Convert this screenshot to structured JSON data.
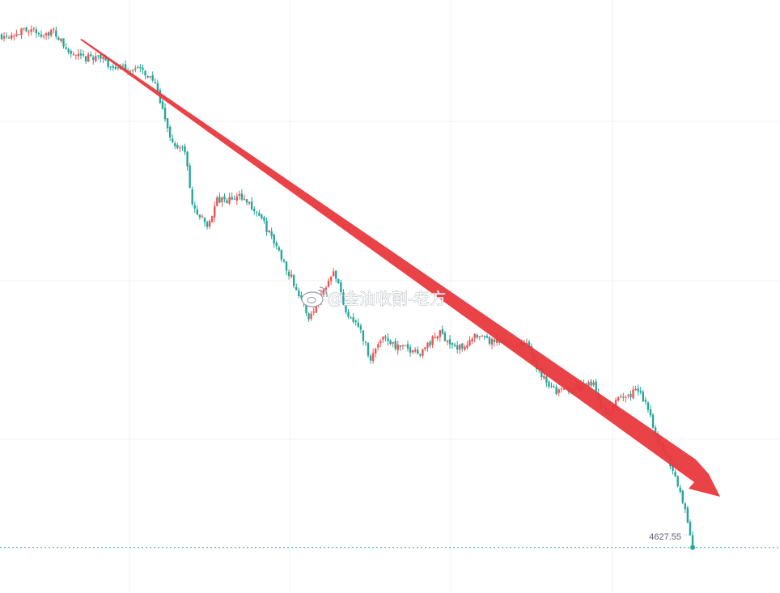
{
  "chart_data": {
    "type": "candlestick",
    "x_start": 1,
    "x_end": 280,
    "ylim": [
      4580,
      5200
    ],
    "grid": true,
    "colors": {
      "up": "#ef5350",
      "down": "#26a69a",
      "grid": "#eef0f3",
      "current_line": "#26a69a",
      "arrow": "#e8383d",
      "price_text": "#5b6170"
    },
    "anchors": [
      [
        1,
        5163
      ],
      [
        8,
        5166
      ],
      [
        12,
        5170
      ],
      [
        16,
        5164
      ],
      [
        22,
        5167
      ],
      [
        28,
        5145
      ],
      [
        34,
        5138
      ],
      [
        40,
        5142
      ],
      [
        44,
        5132
      ],
      [
        50,
        5128
      ],
      [
        56,
        5128
      ],
      [
        62,
        5118
      ],
      [
        70,
        5050
      ],
      [
        75,
        5042
      ],
      [
        78,
        4985
      ],
      [
        84,
        4963
      ],
      [
        88,
        4990
      ],
      [
        92,
        4990
      ],
      [
        98,
        4995
      ],
      [
        105,
        4975
      ],
      [
        112,
        4942
      ],
      [
        118,
        4910
      ],
      [
        125,
        4868
      ],
      [
        130,
        4892
      ],
      [
        135,
        4920
      ],
      [
        140,
        4875
      ],
      [
        145,
        4860
      ],
      [
        150,
        4825
      ],
      [
        155,
        4850
      ],
      [
        160,
        4838
      ],
      [
        170,
        4832
      ],
      [
        178,
        4852
      ],
      [
        185,
        4835
      ],
      [
        192,
        4847
      ],
      [
        200,
        4842
      ],
      [
        208,
        4840
      ],
      [
        213,
        4840
      ],
      [
        218,
        4812
      ],
      [
        225,
        4790
      ],
      [
        232,
        4795
      ],
      [
        240,
        4798
      ],
      [
        245,
        4765
      ],
      [
        250,
        4782
      ],
      [
        258,
        4792
      ],
      [
        262,
        4775
      ],
      [
        266,
        4738
      ],
      [
        270,
        4722
      ],
      [
        274,
        4695
      ],
      [
        278,
        4655
      ],
      [
        280,
        4628
      ]
    ],
    "current_price": 4627.55,
    "current_price_label": "4627.55"
  },
  "annotations": {
    "trend_arrow": {
      "direction": "down",
      "color": "#e8383d"
    },
    "watermark": "@金油收割-老方",
    "watermark_icon": "weibo-icon"
  }
}
